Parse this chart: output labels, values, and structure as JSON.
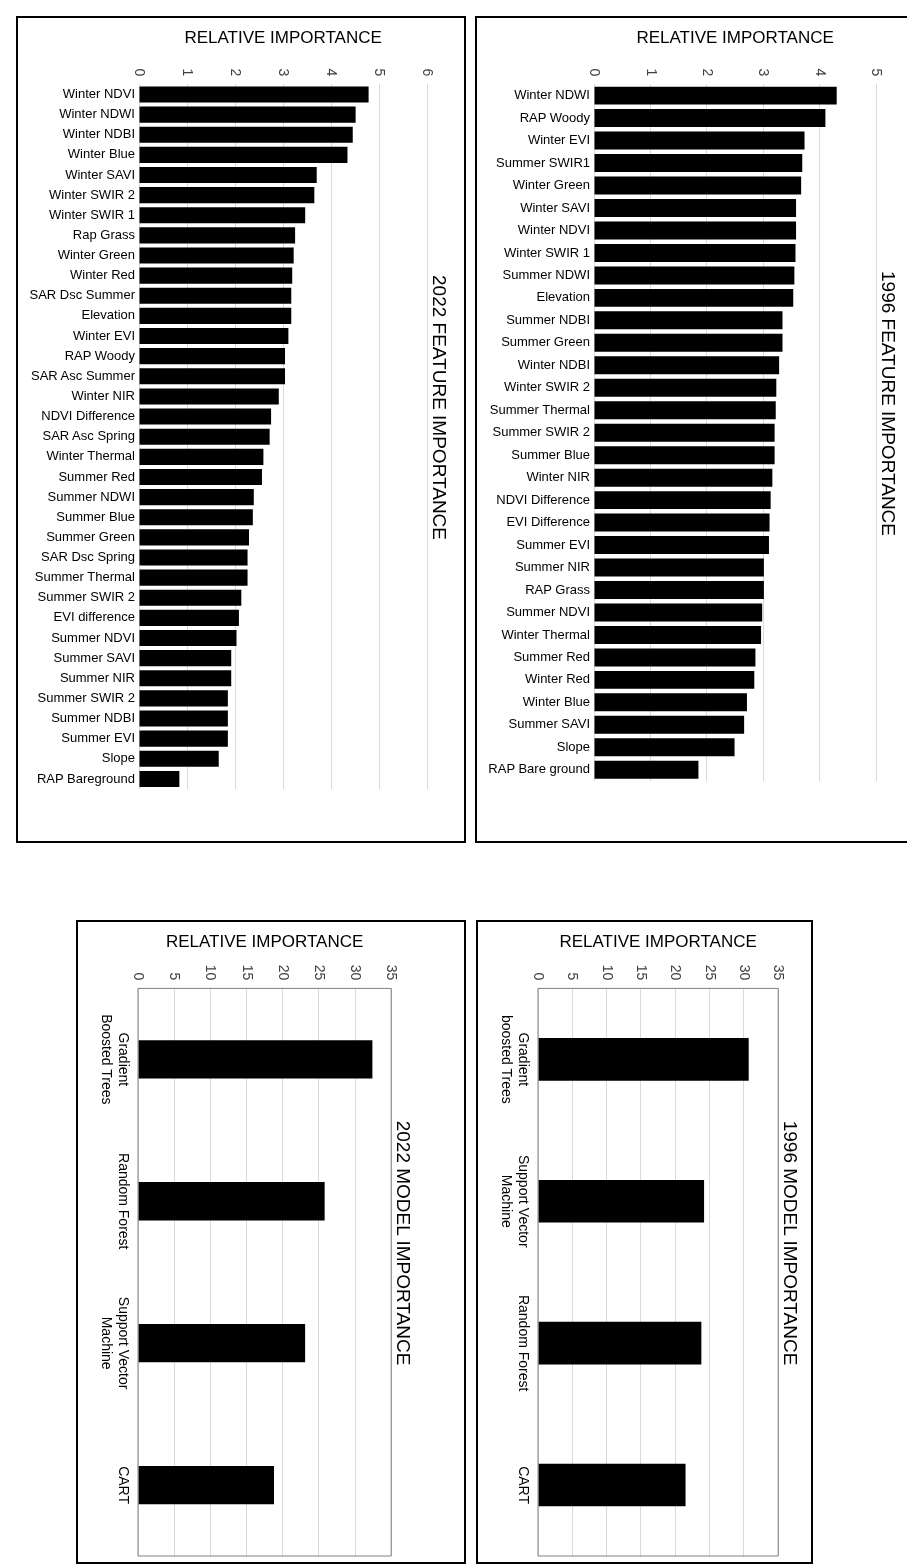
{
  "chart_data": [
    {
      "type": "bar",
      "orientation": "horizontal",
      "title": "2022 FEATURE IMPORTANCE",
      "xlabel": "RELATIVE IMPORTANCE",
      "color": "#000000",
      "grid": "x",
      "xlim": [
        0,
        6
      ],
      "xticks": [
        0,
        1,
        2,
        3,
        4,
        5,
        6
      ],
      "categories": [
        "Winter NDVI",
        "Winter NDWI",
        "Winter NDBI",
        "Winter Blue",
        "Winter SAVI",
        "Winter SWIR 2",
        "Winter SWIR 1",
        "Rap Grass",
        "Winter Green",
        "Winter Red",
        "SAR Dsc Summer",
        "Elevation",
        "Winter EVI",
        "RAP Woody",
        "SAR Asc Summer",
        "Winter NIR",
        "NDVI Difference",
        "SAR Asc Spring",
        "Winter Thermal",
        "Summer Red",
        "Summer NDWI",
        "Summer Blue",
        "Summer Green",
        "SAR Dsc Spring",
        "Summer Thermal",
        "Summer SWIR 2",
        "EVI difference",
        "Summer NDVI",
        "Summer SAVI",
        "Summer NIR",
        "Summer SWIR 2",
        "Summer NDBI",
        "Summer EVI",
        "Slope",
        "RAP Bareground"
      ],
      "values": [
        4.78,
        4.51,
        4.45,
        4.34,
        3.7,
        3.65,
        3.46,
        3.25,
        3.22,
        3.19,
        3.17,
        3.17,
        3.11,
        3.04,
        3.04,
        2.91,
        2.75,
        2.72,
        2.59,
        2.56,
        2.39,
        2.37,
        2.29,
        2.26,
        2.26,
        2.13,
        2.08,
        2.03,
        1.92,
        1.92,
        1.85,
        1.85,
        1.85,
        1.66,
        0.84
      ]
    },
    {
      "type": "bar",
      "orientation": "horizontal",
      "title": "1996 FEATURE IMPORTANCE",
      "xlabel": "RELATIVE IMPORTANCE",
      "color": "#000000",
      "grid": "x",
      "xlim": [
        0,
        5
      ],
      "xticks": [
        0,
        1,
        2,
        3,
        4,
        5
      ],
      "categories": [
        "Winter NDWI",
        "RAP Woody",
        "Winter EVI",
        "Summer SWIR1",
        "Winter Green",
        "Winter SAVI",
        "Winter NDVI",
        "Winter SWIR 1",
        "Summer NDWI",
        "Elevation",
        "Summer NDBI",
        "Summer Green",
        "Winter NDBI",
        "Winter SWIR 2",
        "Summer Thermal",
        "Summer SWIR 2",
        "Summer Blue",
        "Winter NIR",
        "NDVI Difference",
        "EVI Difference",
        "Summer EVI",
        "Summer NIR",
        "RAP Grass",
        "Summer NDVI",
        "Winter Thermal",
        "Summer Red",
        "Winter Red",
        "Winter Blue",
        "Summer SAVI",
        "Slope",
        "RAP Bare ground"
      ],
      "values": [
        4.3,
        4.1,
        3.73,
        3.69,
        3.67,
        3.58,
        3.58,
        3.57,
        3.55,
        3.53,
        3.34,
        3.34,
        3.28,
        3.23,
        3.22,
        3.2,
        3.2,
        3.16,
        3.13,
        3.11,
        3.1,
        3.01,
        3.01,
        2.98,
        2.96,
        2.86,
        2.84,
        2.71,
        2.66,
        2.49,
        1.85
      ]
    },
    {
      "type": "bar",
      "orientation": "horizontal",
      "title": "2022 MODEL IMPORTANCE",
      "xlabel": "RELATIVE IMPORTANCE",
      "color": "#000000",
      "grid": "x",
      "xlim": [
        0,
        35
      ],
      "xticks": [
        0,
        5,
        10,
        15,
        20,
        25,
        30,
        35
      ],
      "categories": [
        "Gradient Boosted Trees",
        "Random Forest",
        "Support Vector Machine",
        "CART"
      ],
      "values": [
        32.4,
        25.8,
        23.1,
        18.8
      ]
    },
    {
      "type": "bar",
      "orientation": "horizontal",
      "title": "1996 MODEL IMPORTANCE",
      "xlabel": "RELATIVE IMPORTANCE",
      "color": "#000000",
      "grid": "x",
      "xlim": [
        0,
        35
      ],
      "xticks": [
        0,
        5,
        10,
        15,
        20,
        25,
        30,
        35
      ],
      "categories": [
        "Gradient boosted Trees",
        "Support Vector Machine",
        "Random Forest",
        "CART"
      ],
      "values": [
        30.7,
        24.2,
        23.8,
        21.5
      ]
    }
  ]
}
